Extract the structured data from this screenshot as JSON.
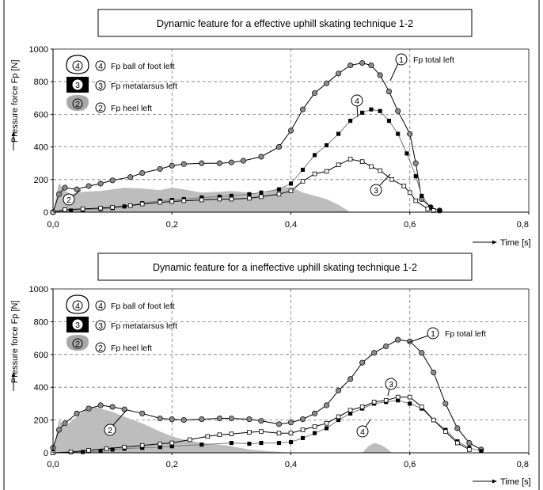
{
  "chart_data": [
    {
      "type": "line",
      "title": "Dynamic feature for a effective uphill skating technique 1-2",
      "ylabel": "Pressure force Fp [N]",
      "xlabel": "Time [s]",
      "xlim": [
        0,
        0.8
      ],
      "ylim": [
        0,
        1000
      ],
      "x_ticks": [
        "0,0",
        "0,2",
        "0,4",
        "0,6",
        "0,8"
      ],
      "y_ticks": [
        "0",
        "200",
        "400",
        "600",
        "800",
        "1000"
      ],
      "grid": "dashed",
      "legend": [
        {
          "num": "4",
          "label": "Fp ball of foot left",
          "icon": "foot-ball-icon"
        },
        {
          "num": "3",
          "label": "Fp metatarsus left",
          "icon": "foot-metatarsus-icon"
        },
        {
          "num": "2",
          "label": "Fp heel left",
          "icon": "foot-heel-icon"
        }
      ],
      "series": [
        {
          "num": "1",
          "label": "Fp total left",
          "marker": "circle",
          "color": "#000000",
          "marker_color": "#8c8c8c",
          "x": [
            0.0,
            0.01,
            0.02,
            0.04,
            0.06,
            0.08,
            0.1,
            0.13,
            0.15,
            0.18,
            0.2,
            0.22,
            0.25,
            0.28,
            0.3,
            0.32,
            0.35,
            0.38,
            0.4,
            0.42,
            0.44,
            0.46,
            0.48,
            0.5,
            0.52,
            0.535,
            0.55,
            0.565,
            0.58,
            0.6,
            0.61,
            0.62,
            0.635,
            0.65
          ],
          "y": [
            0,
            110,
            150,
            140,
            160,
            175,
            195,
            215,
            240,
            265,
            285,
            295,
            300,
            300,
            305,
            315,
            340,
            400,
            500,
            630,
            730,
            790,
            850,
            900,
            915,
            900,
            840,
            740,
            620,
            480,
            300,
            80,
            30,
            10
          ]
        },
        {
          "num": "4",
          "label": "Fp ball of foot left",
          "marker": "filled-square",
          "color": "#7a7a7a",
          "marker_color": "#000000",
          "x": [
            0.0,
            0.03,
            0.05,
            0.08,
            0.1,
            0.12,
            0.15,
            0.18,
            0.2,
            0.22,
            0.25,
            0.28,
            0.3,
            0.33,
            0.35,
            0.38,
            0.4,
            0.42,
            0.44,
            0.46,
            0.48,
            0.5,
            0.52,
            0.535,
            0.55,
            0.565,
            0.58,
            0.595,
            0.61,
            0.62,
            0.635,
            0.65
          ],
          "y": [
            0,
            10,
            15,
            20,
            25,
            35,
            55,
            70,
            75,
            80,
            90,
            95,
            100,
            110,
            120,
            140,
            175,
            260,
            350,
            410,
            480,
            560,
            610,
            630,
            620,
            560,
            480,
            360,
            220,
            100,
            30,
            10
          ]
        },
        {
          "num": "3",
          "label": "Fp metatarsus left",
          "marker": "open-square",
          "color": "#000000",
          "marker_color": "#ffffff",
          "x": [
            0.0,
            0.02,
            0.05,
            0.08,
            0.1,
            0.13,
            0.15,
            0.18,
            0.2,
            0.22,
            0.25,
            0.28,
            0.3,
            0.33,
            0.35,
            0.38,
            0.4,
            0.42,
            0.44,
            0.46,
            0.48,
            0.5,
            0.52,
            0.535,
            0.55,
            0.57,
            0.59,
            0.6,
            0.61,
            0.63,
            0.64
          ],
          "y": [
            0,
            15,
            20,
            25,
            30,
            40,
            50,
            60,
            65,
            70,
            75,
            80,
            80,
            85,
            95,
            110,
            130,
            190,
            235,
            250,
            290,
            325,
            310,
            280,
            255,
            200,
            160,
            120,
            70,
            20,
            10
          ]
        },
        {
          "num": "2",
          "label": "Fp heel left",
          "type": "area",
          "color": "#bdbdbd",
          "x": [
            0.0,
            0.01,
            0.02,
            0.03,
            0.05,
            0.08,
            0.1,
            0.12,
            0.15,
            0.18,
            0.2,
            0.22,
            0.25,
            0.28,
            0.3,
            0.33,
            0.35,
            0.38,
            0.4,
            0.42,
            0.44,
            0.46,
            0.48,
            0.5
          ],
          "y": [
            0,
            180,
            130,
            110,
            125,
            130,
            140,
            150,
            145,
            135,
            150,
            140,
            120,
            125,
            130,
            120,
            110,
            150,
            155,
            120,
            100,
            80,
            45,
            0
          ]
        }
      ],
      "annotations": [
        {
          "num": "1",
          "label": "Fp total left"
        },
        {
          "num": "4",
          "label": ""
        },
        {
          "num": "3",
          "label": ""
        },
        {
          "num": "2",
          "label": ""
        }
      ]
    },
    {
      "type": "line",
      "title": "Dynamic feature for a ineffective uphill skating technique 1-2",
      "ylabel": "Pressure force Fp [N]",
      "xlabel": "Time [s]",
      "xlim": [
        0,
        0.8
      ],
      "ylim": [
        0,
        1000
      ],
      "x_ticks": [
        "0,0",
        "0,2",
        "0,4",
        "0,6",
        "0,8"
      ],
      "y_ticks": [
        "0",
        "200",
        "400",
        "600",
        "800",
        "1000"
      ],
      "grid": "dashed",
      "legend": [
        {
          "num": "4",
          "label": "Fp ball of foot left",
          "icon": "foot-ball-icon"
        },
        {
          "num": "3",
          "label": "Fp metatarsus left",
          "icon": "foot-metatarsus-icon"
        },
        {
          "num": "2",
          "label": "Fp heel left",
          "icon": "foot-heel-icon"
        }
      ],
      "series": [
        {
          "num": "1",
          "label": "Fp total left",
          "marker": "circle",
          "color": "#000000",
          "marker_color": "#8c8c8c",
          "x": [
            0.0,
            0.01,
            0.02,
            0.04,
            0.06,
            0.08,
            0.1,
            0.12,
            0.15,
            0.18,
            0.2,
            0.22,
            0.25,
            0.28,
            0.3,
            0.33,
            0.35,
            0.38,
            0.4,
            0.42,
            0.44,
            0.46,
            0.48,
            0.5,
            0.52,
            0.54,
            0.56,
            0.58,
            0.6,
            0.62,
            0.64,
            0.66,
            0.68,
            0.7,
            0.72
          ],
          "y": [
            30,
            140,
            180,
            240,
            270,
            290,
            280,
            265,
            240,
            210,
            205,
            200,
            205,
            210,
            210,
            205,
            195,
            175,
            185,
            205,
            240,
            290,
            380,
            450,
            550,
            610,
            650,
            690,
            680,
            610,
            490,
            300,
            150,
            60,
            20
          ]
        },
        {
          "num": "4",
          "label": "Fp ball of foot left",
          "marker": "filled-square",
          "color": "#7a7a7a",
          "marker_color": "#000000",
          "x": [
            0.0,
            0.05,
            0.08,
            0.1,
            0.12,
            0.15,
            0.18,
            0.2,
            0.25,
            0.3,
            0.33,
            0.35,
            0.38,
            0.4,
            0.42,
            0.44,
            0.46,
            0.48,
            0.5,
            0.52,
            0.54,
            0.56,
            0.58,
            0.6,
            0.62,
            0.64,
            0.66,
            0.68,
            0.7,
            0.72
          ],
          "y": [
            0,
            5,
            10,
            20,
            25,
            30,
            35,
            40,
            50,
            60,
            55,
            60,
            60,
            65,
            90,
            120,
            150,
            200,
            240,
            270,
            300,
            310,
            320,
            300,
            270,
            200,
            140,
            70,
            30,
            10
          ]
        },
        {
          "num": "3",
          "label": "Fp metatarsus left",
          "marker": "open-square",
          "color": "#000000",
          "marker_color": "#ffffff",
          "x": [
            0.0,
            0.03,
            0.06,
            0.09,
            0.12,
            0.15,
            0.18,
            0.2,
            0.23,
            0.26,
            0.28,
            0.3,
            0.33,
            0.35,
            0.38,
            0.4,
            0.42,
            0.44,
            0.46,
            0.48,
            0.5,
            0.52,
            0.54,
            0.56,
            0.58,
            0.6,
            0.62,
            0.64,
            0.66,
            0.68,
            0.7
          ],
          "y": [
            0,
            5,
            15,
            25,
            35,
            45,
            55,
            60,
            80,
            100,
            110,
            115,
            125,
            130,
            120,
            120,
            140,
            160,
            180,
            220,
            260,
            280,
            310,
            320,
            340,
            340,
            280,
            200,
            130,
            60,
            20
          ]
        },
        {
          "num": "2",
          "label": "Fp heel left",
          "type": "area",
          "color": "#bdbdbd",
          "x": [
            0.0,
            0.01,
            0.02,
            0.03,
            0.04,
            0.05,
            0.06,
            0.08,
            0.1,
            0.12,
            0.15,
            0.18,
            0.2,
            0.22,
            0.25,
            0.28,
            0.3,
            0.33,
            0.36,
            0.4,
            0.52,
            0.53,
            0.54,
            0.55,
            0.56,
            0.57
          ],
          "y": [
            0,
            200,
            160,
            190,
            220,
            250,
            285,
            270,
            250,
            220,
            180,
            130,
            100,
            80,
            60,
            50,
            40,
            20,
            10,
            0,
            0,
            40,
            60,
            50,
            30,
            0
          ]
        }
      ],
      "annotations": [
        {
          "num": "1",
          "label": "Fp total left"
        },
        {
          "num": "3",
          "label": ""
        },
        {
          "num": "4",
          "label": ""
        },
        {
          "num": "2",
          "label": ""
        }
      ]
    }
  ]
}
